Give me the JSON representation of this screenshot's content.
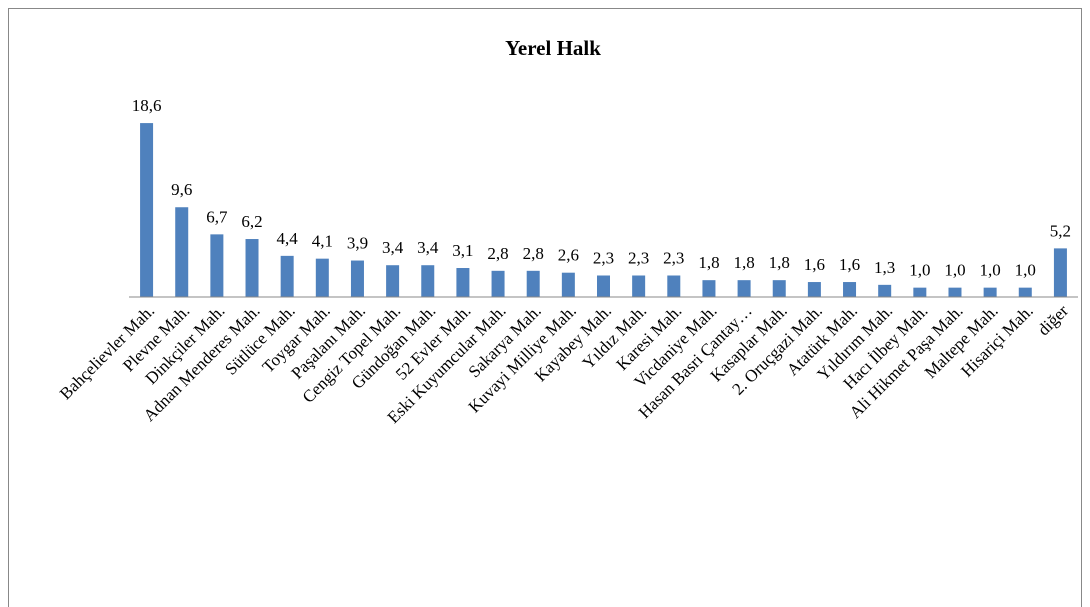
{
  "chart_data": {
    "type": "bar",
    "title": "Yerel Halk",
    "categories": [
      "Bahçelievler Mah.",
      "Plevne Mah.",
      "Dinkçiler Mah.",
      "Adnan Menderes Mah.",
      "Sütlüce Mah.",
      "Toygar Mah.",
      "Paşalanı Mah.",
      "Cengiz Topel Mah.",
      "Gündoğan Mah.",
      "52 Evler Mah.",
      "Eski Kuyumcular Mah.",
      "Sakarya Mah.",
      "Kuvayi Milliye Mah.",
      "Kayabey Mah.",
      "Yıldız Mah.",
      "Karesi Mah.",
      "Vicdaniye Mah.",
      "Hasan Basri Çantay…",
      "Kasaplar Mah.",
      "2. Oruçgazi Mah.",
      "Atatürk Mah.",
      "Yıldırım Mah.",
      "Hacı İlbey Mah.",
      "Ali Hikmet Paşa Mah.",
      "Maltepe Mah.",
      "Hisariçi Mah.",
      "diğer"
    ],
    "values": [
      18.6,
      9.6,
      6.7,
      6.2,
      4.4,
      4.1,
      3.9,
      3.4,
      3.4,
      3.1,
      2.8,
      2.8,
      2.6,
      2.3,
      2.3,
      2.3,
      1.8,
      1.8,
      1.8,
      1.6,
      1.6,
      1.3,
      1.0,
      1.0,
      1.0,
      1.0,
      5.2
    ],
    "value_labels": [
      "18,6",
      "9,6",
      "6,7",
      "6,2",
      "4,4",
      "4,1",
      "3,9",
      "3,4",
      "3,4",
      "3,1",
      "2,8",
      "2,8",
      "2,6",
      "2,3",
      "2,3",
      "2,3",
      "1,8",
      "1,8",
      "1,8",
      "1,6",
      "1,6",
      "1,3",
      "1,0",
      "1,0",
      "1,0",
      "1,0",
      "5,2"
    ],
    "color": "#4f81bd",
    "ylim": [
      0,
      20
    ]
  }
}
